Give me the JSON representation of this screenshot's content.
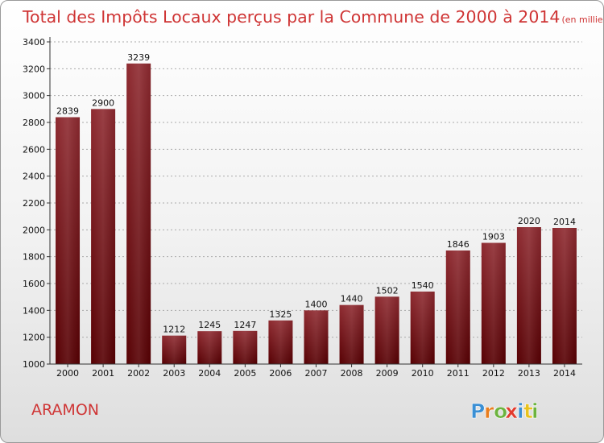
{
  "chart_data": {
    "type": "bar",
    "title": "Total des Impôts Locaux perçus par la Commune de 2000 à 2014",
    "unit_note": "(en milliers d'€)",
    "categories": [
      "2000",
      "2001",
      "2002",
      "2003",
      "2004",
      "2005",
      "2006",
      "2007",
      "2008",
      "2009",
      "2010",
      "2011",
      "2012",
      "2013",
      "2014"
    ],
    "values": [
      2839,
      2900,
      3239,
      1212,
      1245,
      1247,
      1325,
      1400,
      1440,
      1502,
      1540,
      1846,
      1903,
      2020,
      2014
    ],
    "ylim": [
      1000,
      3400
    ],
    "yticks": [
      1000,
      1200,
      1400,
      1600,
      1800,
      2000,
      2200,
      2400,
      2600,
      2800,
      3000,
      3200,
      3400
    ],
    "grid": true,
    "bar_color": "#8b1a1a"
  },
  "commune_name": "ARAMON",
  "brand": {
    "letters": [
      "P",
      "r",
      "o",
      "x",
      "i",
      "t",
      "i"
    ],
    "colors": [
      "#3a8fd4",
      "#e87d1e",
      "#6cb33f",
      "#e23b2e",
      "#3a8fd4",
      "#e8c21e",
      "#6cb33f"
    ]
  }
}
